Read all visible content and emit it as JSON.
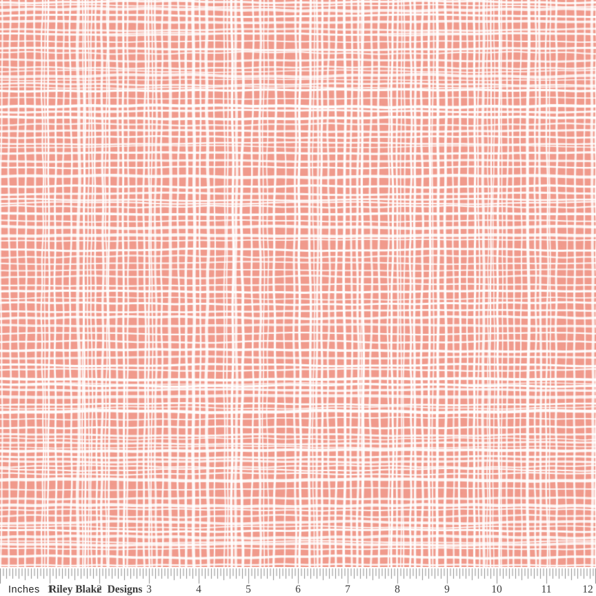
{
  "fabric": {
    "description": "Coral pink quilting fabric with irregular white hand-drawn woven grid / crosshatch texture pattern",
    "base_color": "#F09A8C",
    "grid_line_color": "#FFFFFF",
    "speckle_light": "#F8B7AB",
    "speckle_dark": "#E8887A"
  },
  "ruler": {
    "background": "#FFFFFF",
    "tick_color": "#8C8C8C",
    "text_color": "#3A3A3A",
    "unit_label": "Inches",
    "brand": [
      "Riley Blake",
      "Designs"
    ],
    "numbers": [
      "1",
      "2",
      "3",
      "4",
      "5",
      "6",
      "7",
      "8",
      "9",
      "10",
      "11",
      "12"
    ]
  }
}
